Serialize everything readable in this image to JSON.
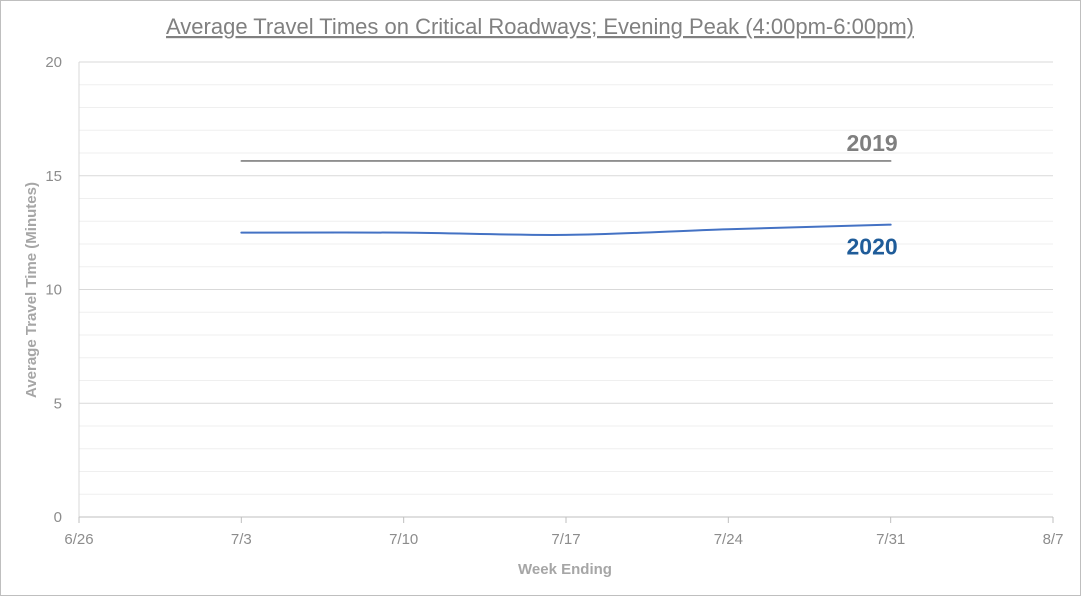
{
  "chart_data": {
    "type": "line",
    "title": "Average Travel Times on Critical Roadways; Evening Peak (4:00pm-6:00pm)",
    "xlabel": "Week Ending",
    "ylabel": "Average Travel Time (Minutes)",
    "x_ticks": [
      "6/26",
      "7/3",
      "7/10",
      "7/17",
      "7/24",
      "7/31",
      "8/7"
    ],
    "y_ticks": [
      "0",
      "5",
      "10",
      "15",
      "20"
    ],
    "ylim": [
      0,
      20
    ],
    "xlim": [
      "6/26",
      "8/7"
    ],
    "grid": "horizontal major and minor gridlines",
    "series": [
      {
        "name": "2019",
        "color": "#7f7f7f",
        "x": [
          "7/3",
          "7/31"
        ],
        "values": [
          15.65,
          15.65
        ]
      },
      {
        "name": "2020",
        "color": "#4472c4",
        "label_color": "#1f5c99",
        "x": [
          "7/3",
          "7/10",
          "7/17",
          "7/24",
          "7/31"
        ],
        "values": [
          12.5,
          12.5,
          12.4,
          12.65,
          12.85
        ]
      }
    ]
  }
}
